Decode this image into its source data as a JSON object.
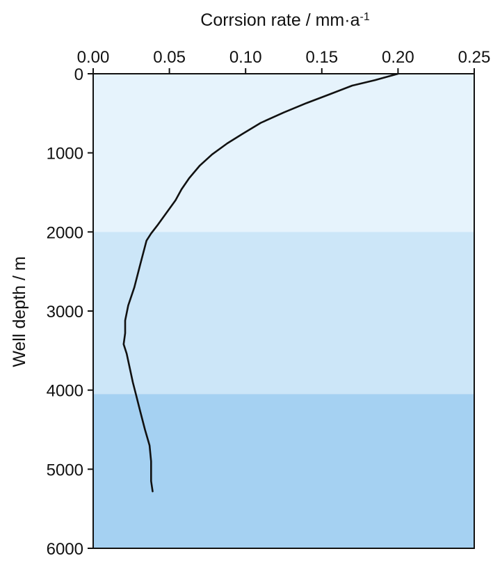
{
  "chart_data": {
    "type": "line",
    "xlabel_main": "Corrsion rate / mm·a",
    "xlabel_sup": "-1",
    "ylabel": "Well depth / m",
    "x_axis_position": "top",
    "y_axis_inverted": true,
    "xlim": [
      0,
      0.25
    ],
    "ylim": [
      0,
      6000
    ],
    "x_ticks": [
      "0.00",
      "0.05",
      "0.10",
      "0.15",
      "0.20",
      "0.25"
    ],
    "y_ticks": [
      "0",
      "1000",
      "2000",
      "3000",
      "4000",
      "5000",
      "6000"
    ],
    "grid": false,
    "bands": [
      {
        "from": 0,
        "to": 2000,
        "color": "#e6f3fc"
      },
      {
        "from": 2000,
        "to": 4050,
        "color": "#cce6f8"
      },
      {
        "from": 4050,
        "to": 6000,
        "color": "#a5d1f2"
      }
    ],
    "series": [
      {
        "color": "#111111",
        "points": [
          [
            0.2,
            0
          ],
          [
            0.185,
            80
          ],
          [
            0.17,
            150
          ],
          [
            0.155,
            260
          ],
          [
            0.14,
            370
          ],
          [
            0.125,
            490
          ],
          [
            0.11,
            620
          ],
          [
            0.098,
            760
          ],
          [
            0.088,
            880
          ],
          [
            0.078,
            1020
          ],
          [
            0.07,
            1160
          ],
          [
            0.063,
            1320
          ],
          [
            0.058,
            1460
          ],
          [
            0.054,
            1600
          ],
          [
            0.048,
            1760
          ],
          [
            0.042,
            1920
          ],
          [
            0.038,
            2020
          ],
          [
            0.035,
            2110
          ],
          [
            0.031,
            2400
          ],
          [
            0.027,
            2700
          ],
          [
            0.023,
            2930
          ],
          [
            0.021,
            3120
          ],
          [
            0.021,
            3280
          ],
          [
            0.02,
            3420
          ],
          [
            0.022,
            3540
          ],
          [
            0.024,
            3720
          ],
          [
            0.026,
            3900
          ],
          [
            0.028,
            4050
          ],
          [
            0.031,
            4280
          ],
          [
            0.034,
            4500
          ],
          [
            0.037,
            4700
          ],
          [
            0.038,
            4900
          ],
          [
            0.038,
            5050
          ],
          [
            0.038,
            5150
          ],
          [
            0.039,
            5280
          ]
        ]
      }
    ]
  }
}
